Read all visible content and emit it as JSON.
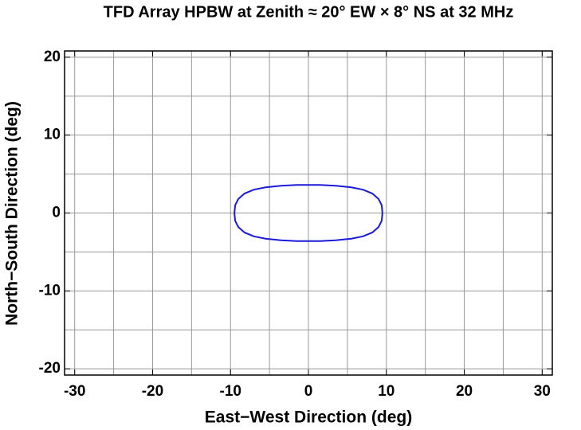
{
  "chart_data": {
    "type": "line",
    "title": "TFD Array HPBW at Zenith ≈ 20° EW × 8° NS at 32 MHz",
    "xlabel": "East−West Direction (deg)",
    "ylabel": "North−South Direction (deg)",
    "x": [
      9.5,
      9.4,
      9.0,
      8.2,
      7.0,
      5.5,
      3.5,
      1.5,
      0,
      -1.5,
      -3.5,
      -5.5,
      -7.0,
      -8.2,
      -9.0,
      -9.4,
      -9.5,
      -9.4,
      -9.0,
      -8.2,
      -7.0,
      -5.5,
      -3.5,
      -1.5,
      0,
      1.5,
      3.5,
      5.5,
      7.0,
      8.2,
      9.0,
      9.4,
      9.5
    ],
    "series": [
      {
        "color": "#1a1ad8",
        "values": [
          0,
          1.0,
          1.8,
          2.5,
          3.0,
          3.3,
          3.5,
          3.6,
          3.6,
          3.6,
          3.5,
          3.3,
          3.0,
          2.5,
          1.8,
          1.0,
          0,
          -1.0,
          -1.8,
          -2.5,
          -3.0,
          -3.3,
          -3.5,
          -3.6,
          -3.6,
          -3.6,
          -3.5,
          -3.3,
          -3.0,
          -2.5,
          -1.8,
          -1.0,
          0
        ]
      }
    ],
    "xlim": [
      -31.3,
      31.3
    ],
    "ylim": [
      -20.8,
      20.8
    ],
    "xticks": [
      -30,
      -20,
      -10,
      0,
      10,
      20,
      30
    ],
    "yticks": [
      -20,
      -10,
      0,
      10,
      20
    ],
    "xgrid": [
      -30,
      -25,
      -20,
      -15,
      -10,
      -5,
      0,
      5,
      10,
      15,
      20,
      25,
      30
    ],
    "ygrid": [
      -20,
      -15,
      -10,
      -5,
      0,
      5,
      10,
      15,
      20
    ],
    "grid": true
  }
}
